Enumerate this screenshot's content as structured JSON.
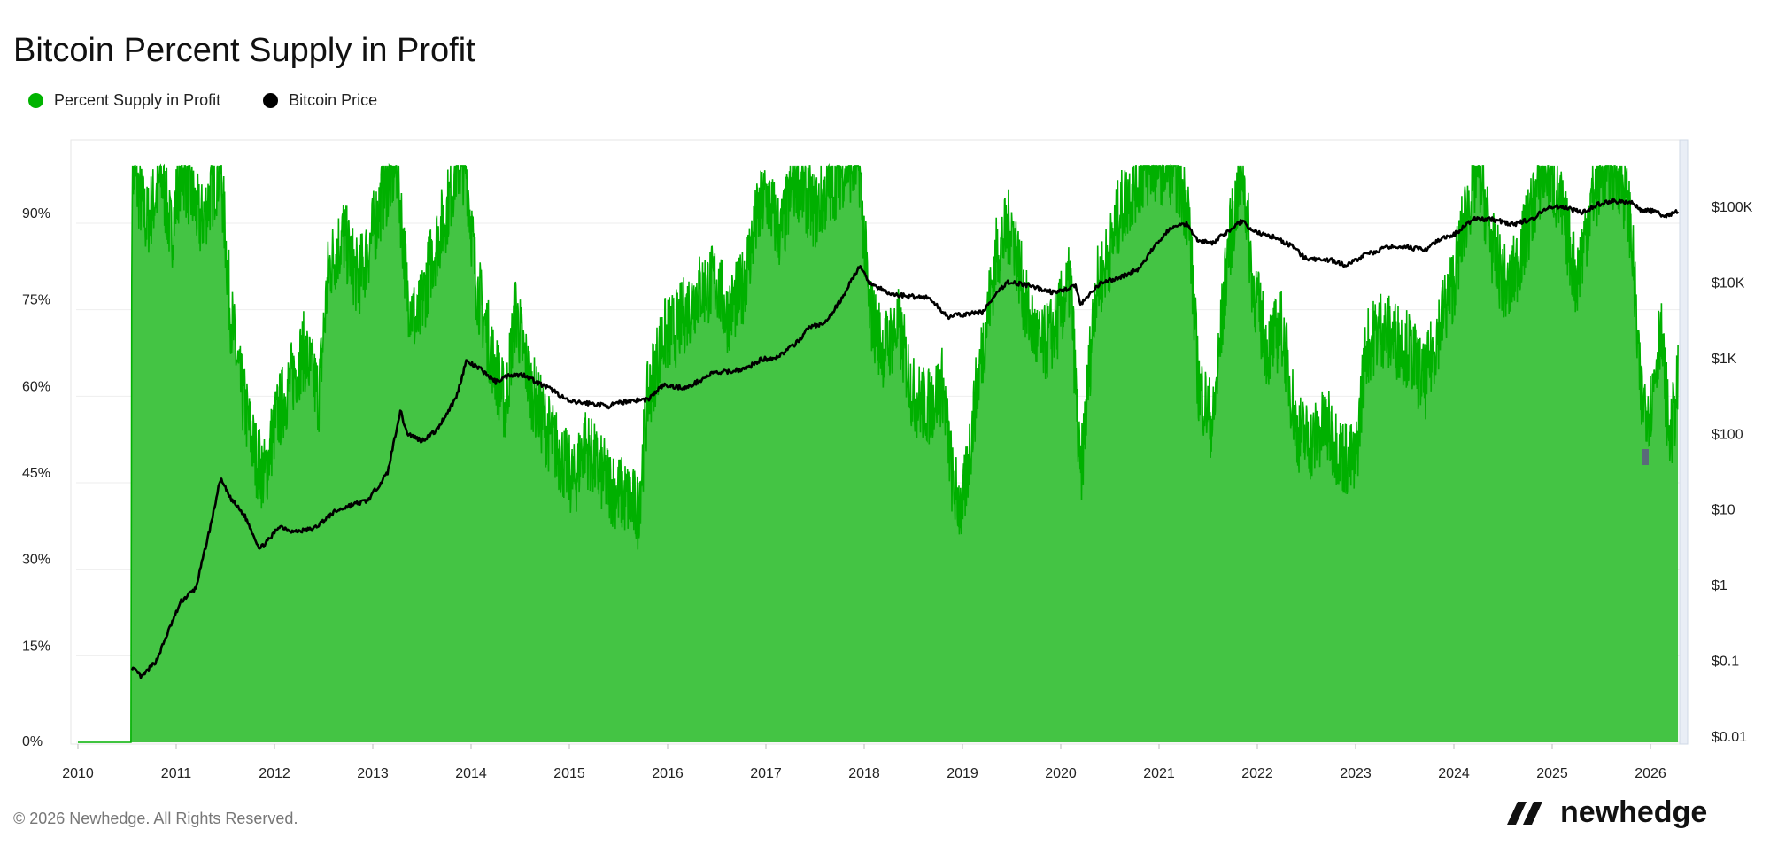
{
  "title": "Bitcoin Percent Supply in Profit",
  "legend": [
    {
      "label": "Percent Supply in Profit",
      "color": "#00b300"
    },
    {
      "label": "Bitcoin Price",
      "color": "#000000"
    }
  ],
  "footer": {
    "copyright": "© 2026 Newhedge. All Rights Reserved.",
    "brand": "newhedge"
  },
  "colors": {
    "area": "#44c444",
    "area_line": "#00b000",
    "price": "#000000",
    "grid": "#eeeeee"
  },
  "chart_data": {
    "type": "area",
    "title": "Bitcoin Percent Supply in Profit",
    "x_range": [
      2010.0,
      2026.35
    ],
    "x_ticks": [
      "2010",
      "2011",
      "2012",
      "2013",
      "2014",
      "2015",
      "2016",
      "2017",
      "2018",
      "2019",
      "2020",
      "2021",
      "2022",
      "2023",
      "2024",
      "2025",
      "2026"
    ],
    "y_left": {
      "ticks": [
        "0%",
        "15%",
        "30%",
        "45%",
        "60%",
        "75%",
        "90%"
      ],
      "range": [
        0,
        100
      ]
    },
    "y_right": {
      "ticks": [
        "$0.01",
        "$0.1",
        "$1",
        "$10",
        "$100",
        "$1K",
        "$10K",
        "$100K"
      ],
      "scale": "log",
      "range": [
        0.01,
        300000
      ]
    },
    "legend_position": "top-left",
    "series": [
      {
        "name": "Percent Supply in Profit",
        "axis": "left",
        "points": [
          [
            2010.0,
            0
          ],
          [
            2010.54,
            0
          ],
          [
            2010.55,
            100
          ],
          [
            2010.7,
            90
          ],
          [
            2010.85,
            98
          ],
          [
            2010.95,
            88
          ],
          [
            2011.05,
            100
          ],
          [
            2011.25,
            90
          ],
          [
            2011.45,
            100
          ],
          [
            2011.55,
            75
          ],
          [
            2011.65,
            62
          ],
          [
            2011.8,
            50
          ],
          [
            2011.9,
            46
          ],
          [
            2012.0,
            55
          ],
          [
            2012.15,
            62
          ],
          [
            2012.3,
            68
          ],
          [
            2012.45,
            60
          ],
          [
            2012.55,
            82
          ],
          [
            2012.7,
            88
          ],
          [
            2012.85,
            80
          ],
          [
            2012.95,
            85
          ],
          [
            2013.1,
            95
          ],
          [
            2013.25,
            100
          ],
          [
            2013.35,
            78
          ],
          [
            2013.45,
            72
          ],
          [
            2013.6,
            84
          ],
          [
            2013.75,
            92
          ],
          [
            2013.85,
            100
          ],
          [
            2013.95,
            100
          ],
          [
            2014.05,
            80
          ],
          [
            2014.2,
            68
          ],
          [
            2014.35,
            58
          ],
          [
            2014.45,
            75
          ],
          [
            2014.6,
            62
          ],
          [
            2014.75,
            55
          ],
          [
            2014.9,
            50
          ],
          [
            2015.05,
            45
          ],
          [
            2015.15,
            52
          ],
          [
            2015.3,
            47
          ],
          [
            2015.45,
            44
          ],
          [
            2015.6,
            42
          ],
          [
            2015.7,
            40
          ],
          [
            2015.8,
            60
          ],
          [
            2015.95,
            70
          ],
          [
            2016.1,
            72
          ],
          [
            2016.3,
            78
          ],
          [
            2016.5,
            80
          ],
          [
            2016.6,
            74
          ],
          [
            2016.75,
            78
          ],
          [
            2016.9,
            90
          ],
          [
            2017.0,
            95
          ],
          [
            2017.15,
            88
          ],
          [
            2017.3,
            98
          ],
          [
            2017.5,
            92
          ],
          [
            2017.65,
            96
          ],
          [
            2017.8,
            100
          ],
          [
            2017.95,
            100
          ],
          [
            2018.05,
            75
          ],
          [
            2018.2,
            68
          ],
          [
            2018.35,
            72
          ],
          [
            2018.5,
            60
          ],
          [
            2018.65,
            58
          ],
          [
            2018.8,
            62
          ],
          [
            2018.9,
            45
          ],
          [
            2019.0,
            40
          ],
          [
            2019.15,
            62
          ],
          [
            2019.35,
            85
          ],
          [
            2019.5,
            90
          ],
          [
            2019.65,
            75
          ],
          [
            2019.8,
            68
          ],
          [
            2019.95,
            72
          ],
          [
            2020.1,
            80
          ],
          [
            2020.2,
            45
          ],
          [
            2020.35,
            78
          ],
          [
            2020.5,
            85
          ],
          [
            2020.6,
            92
          ],
          [
            2020.8,
            98
          ],
          [
            2020.95,
            100
          ],
          [
            2021.15,
            100
          ],
          [
            2021.3,
            92
          ],
          [
            2021.4,
            62
          ],
          [
            2021.55,
            55
          ],
          [
            2021.7,
            85
          ],
          [
            2021.85,
            100
          ],
          [
            2021.95,
            80
          ],
          [
            2022.1,
            68
          ],
          [
            2022.25,
            72
          ],
          [
            2022.4,
            54
          ],
          [
            2022.55,
            52
          ],
          [
            2022.7,
            55
          ],
          [
            2022.85,
            50
          ],
          [
            2023.0,
            48
          ],
          [
            2023.1,
            68
          ],
          [
            2023.25,
            72
          ],
          [
            2023.4,
            70
          ],
          [
            2023.55,
            68
          ],
          [
            2023.7,
            62
          ],
          [
            2023.85,
            72
          ],
          [
            2024.0,
            80
          ],
          [
            2024.1,
            90
          ],
          [
            2024.25,
            100
          ],
          [
            2024.4,
            85
          ],
          [
            2024.55,
            78
          ],
          [
            2024.7,
            86
          ],
          [
            2024.85,
            96
          ],
          [
            2024.95,
            100
          ],
          [
            2025.1,
            92
          ],
          [
            2025.25,
            80
          ],
          [
            2025.4,
            94
          ],
          [
            2025.55,
            100
          ],
          [
            2025.7,
            98
          ],
          [
            2025.8,
            90
          ],
          [
            2025.9,
            60
          ],
          [
            2026.0,
            58
          ],
          [
            2026.1,
            72
          ],
          [
            2026.2,
            52
          ],
          [
            2026.28,
            62
          ]
        ]
      },
      {
        "name": "Bitcoin Price",
        "axis": "right",
        "points": [
          [
            2010.55,
            0.08
          ],
          [
            2010.65,
            0.06
          ],
          [
            2010.8,
            0.1
          ],
          [
            2010.95,
            0.3
          ],
          [
            2011.05,
            0.6
          ],
          [
            2011.2,
            0.9
          ],
          [
            2011.35,
            6
          ],
          [
            2011.45,
            25
          ],
          [
            2011.55,
            14
          ],
          [
            2011.7,
            8
          ],
          [
            2011.85,
            3
          ],
          [
            2011.95,
            4
          ],
          [
            2012.05,
            6
          ],
          [
            2012.2,
            5
          ],
          [
            2012.4,
            5.5
          ],
          [
            2012.6,
            9
          ],
          [
            2012.75,
            11
          ],
          [
            2012.95,
            13
          ],
          [
            2013.15,
            30
          ],
          [
            2013.28,
            200
          ],
          [
            2013.35,
            100
          ],
          [
            2013.5,
            80
          ],
          [
            2013.65,
            110
          ],
          [
            2013.85,
            300
          ],
          [
            2013.95,
            900
          ],
          [
            2014.1,
            700
          ],
          [
            2014.25,
            480
          ],
          [
            2014.4,
            600
          ],
          [
            2014.55,
            590
          ],
          [
            2014.7,
            450
          ],
          [
            2014.85,
            360
          ],
          [
            2015.0,
            260
          ],
          [
            2015.2,
            250
          ],
          [
            2015.4,
            230
          ],
          [
            2015.6,
            270
          ],
          [
            2015.8,
            280
          ],
          [
            2015.95,
            430
          ],
          [
            2016.2,
            400
          ],
          [
            2016.45,
            620
          ],
          [
            2016.6,
            650
          ],
          [
            2016.8,
            720
          ],
          [
            2016.95,
            950
          ],
          [
            2017.1,
            1000
          ],
          [
            2017.3,
            1500
          ],
          [
            2017.45,
            2600
          ],
          [
            2017.6,
            2800
          ],
          [
            2017.75,
            5500
          ],
          [
            2017.95,
            16000
          ],
          [
            2018.05,
            10000
          ],
          [
            2018.25,
            7000
          ],
          [
            2018.45,
            6500
          ],
          [
            2018.65,
            6300
          ],
          [
            2018.85,
            3500
          ],
          [
            2019.0,
            3700
          ],
          [
            2019.2,
            4000
          ],
          [
            2019.45,
            10000
          ],
          [
            2019.6,
            9500
          ],
          [
            2019.8,
            8000
          ],
          [
            2019.95,
            7200
          ],
          [
            2020.15,
            9000
          ],
          [
            2020.2,
            5000
          ],
          [
            2020.4,
            9500
          ],
          [
            2020.6,
            11500
          ],
          [
            2020.8,
            15000
          ],
          [
            2020.95,
            29000
          ],
          [
            2021.1,
            50000
          ],
          [
            2021.28,
            60000
          ],
          [
            2021.4,
            35000
          ],
          [
            2021.55,
            33000
          ],
          [
            2021.7,
            47000
          ],
          [
            2021.85,
            65000
          ],
          [
            2021.95,
            47000
          ],
          [
            2022.15,
            40000
          ],
          [
            2022.35,
            30000
          ],
          [
            2022.5,
            20000
          ],
          [
            2022.75,
            19500
          ],
          [
            2022.9,
            16500
          ],
          [
            2023.1,
            23000
          ],
          [
            2023.3,
            28000
          ],
          [
            2023.5,
            30000
          ],
          [
            2023.7,
            26000
          ],
          [
            2023.85,
            36000
          ],
          [
            2024.0,
            42000
          ],
          [
            2024.2,
            68000
          ],
          [
            2024.4,
            67000
          ],
          [
            2024.6,
            58000
          ],
          [
            2024.8,
            68000
          ],
          [
            2024.95,
            97000
          ],
          [
            2025.1,
            100000
          ],
          [
            2025.3,
            82000
          ],
          [
            2025.45,
            105000
          ],
          [
            2025.6,
            118000
          ],
          [
            2025.8,
            115000
          ],
          [
            2025.9,
            90000
          ],
          [
            2026.0,
            88000
          ],
          [
            2026.15,
            75000
          ],
          [
            2026.28,
            85000
          ]
        ]
      }
    ]
  }
}
